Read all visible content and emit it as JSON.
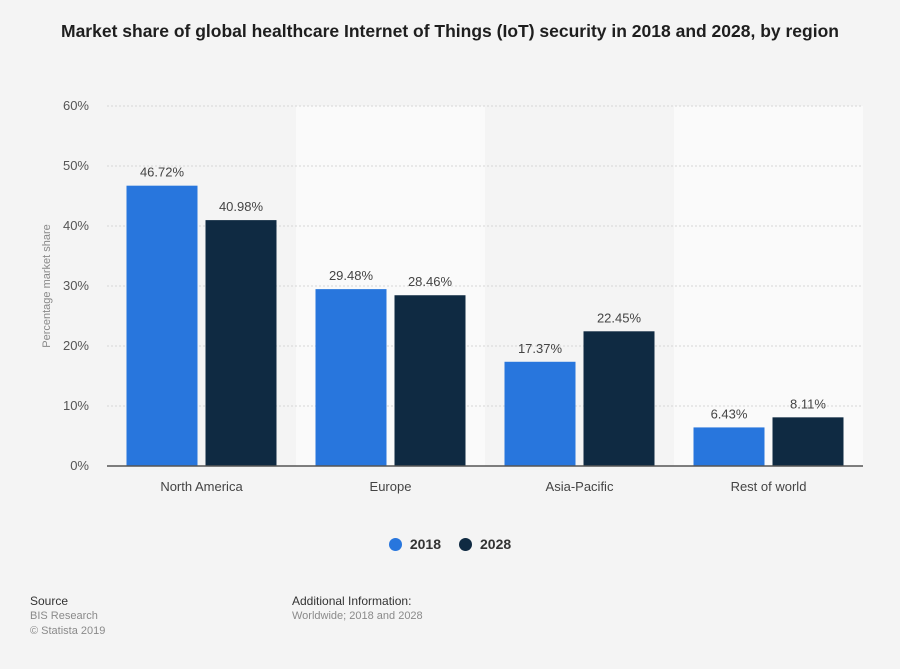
{
  "chart_data": {
    "type": "bar",
    "title": "Market share of global healthcare Internet of Things (IoT) security in 2018 and 2028, by region",
    "ylabel": "Percentage market share",
    "xlabel": "",
    "categories": [
      "North America",
      "Europe",
      "Asia-Pacific",
      "Rest of world"
    ],
    "series": [
      {
        "name": "2018",
        "values": [
          46.72,
          29.48,
          17.37,
          6.43
        ],
        "labels": [
          "46.72%",
          "29.48%",
          "17.37%",
          "6.43%"
        ],
        "color": "#2876dd"
      },
      {
        "name": "2028",
        "values": [
          40.98,
          28.46,
          22.45,
          8.11
        ],
        "labels": [
          "40.98%",
          "28.46%",
          "22.45%",
          "8.11%"
        ],
        "color": "#0f2a42"
      }
    ],
    "ylim": [
      0,
      60
    ],
    "yticks": [
      0,
      10,
      20,
      30,
      40,
      50,
      60
    ],
    "ytick_labels": [
      "0%",
      "10%",
      "20%",
      "30%",
      "40%",
      "50%",
      "60%"
    ],
    "grid": true,
    "legend": "bottom-center"
  },
  "footer": {
    "source_heading": "Source",
    "source": "BIS Research",
    "copyright": "© Statista 2019",
    "additional_heading": "Additional Information:",
    "additional": "Worldwide; 2018 and 2028"
  }
}
